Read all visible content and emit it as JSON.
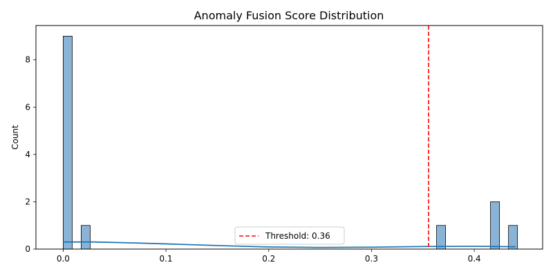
{
  "chart_data": {
    "type": "bar",
    "title": "Anomaly Fusion Score Distribution",
    "xlabel": "",
    "ylabel": "Count",
    "xlim": [
      -0.0265,
      0.4665
    ],
    "ylim": [
      0,
      9.45
    ],
    "xticks": [
      0.0,
      0.1,
      0.2,
      0.3,
      0.4
    ],
    "xtick_labels": [
      "0.0",
      "0.1",
      "0.2",
      "0.3",
      "0.4"
    ],
    "yticks": [
      0,
      2,
      4,
      6,
      8
    ],
    "ytick_labels": [
      "0",
      "2",
      "4",
      "6",
      "8"
    ],
    "bin_width": 0.00875,
    "bins": [
      {
        "x0": 0.0,
        "count": 9
      },
      {
        "x0": 0.0175,
        "count": 1
      },
      {
        "x0": 0.3633,
        "count": 1
      },
      {
        "x0": 0.4158,
        "count": 2
      },
      {
        "x0": 0.4333,
        "count": 1
      }
    ],
    "kde": {
      "x": [
        0.0,
        0.03,
        0.06,
        0.1,
        0.15,
        0.2,
        0.25,
        0.3,
        0.35,
        0.4,
        0.44
      ],
      "y": [
        0.3,
        0.3,
        0.27,
        0.22,
        0.15,
        0.09,
        0.07,
        0.08,
        0.11,
        0.12,
        0.1
      ]
    },
    "threshold": 0.3555,
    "legend": {
      "label": "Threshold: 0.36",
      "placement": "lower-center"
    },
    "colors": {
      "bar_fill": "#8ab4d7",
      "bar_edge": "#000000",
      "kde_line": "#1f77b4",
      "threshold_line": "#ff0000"
    },
    "grid": false
  }
}
